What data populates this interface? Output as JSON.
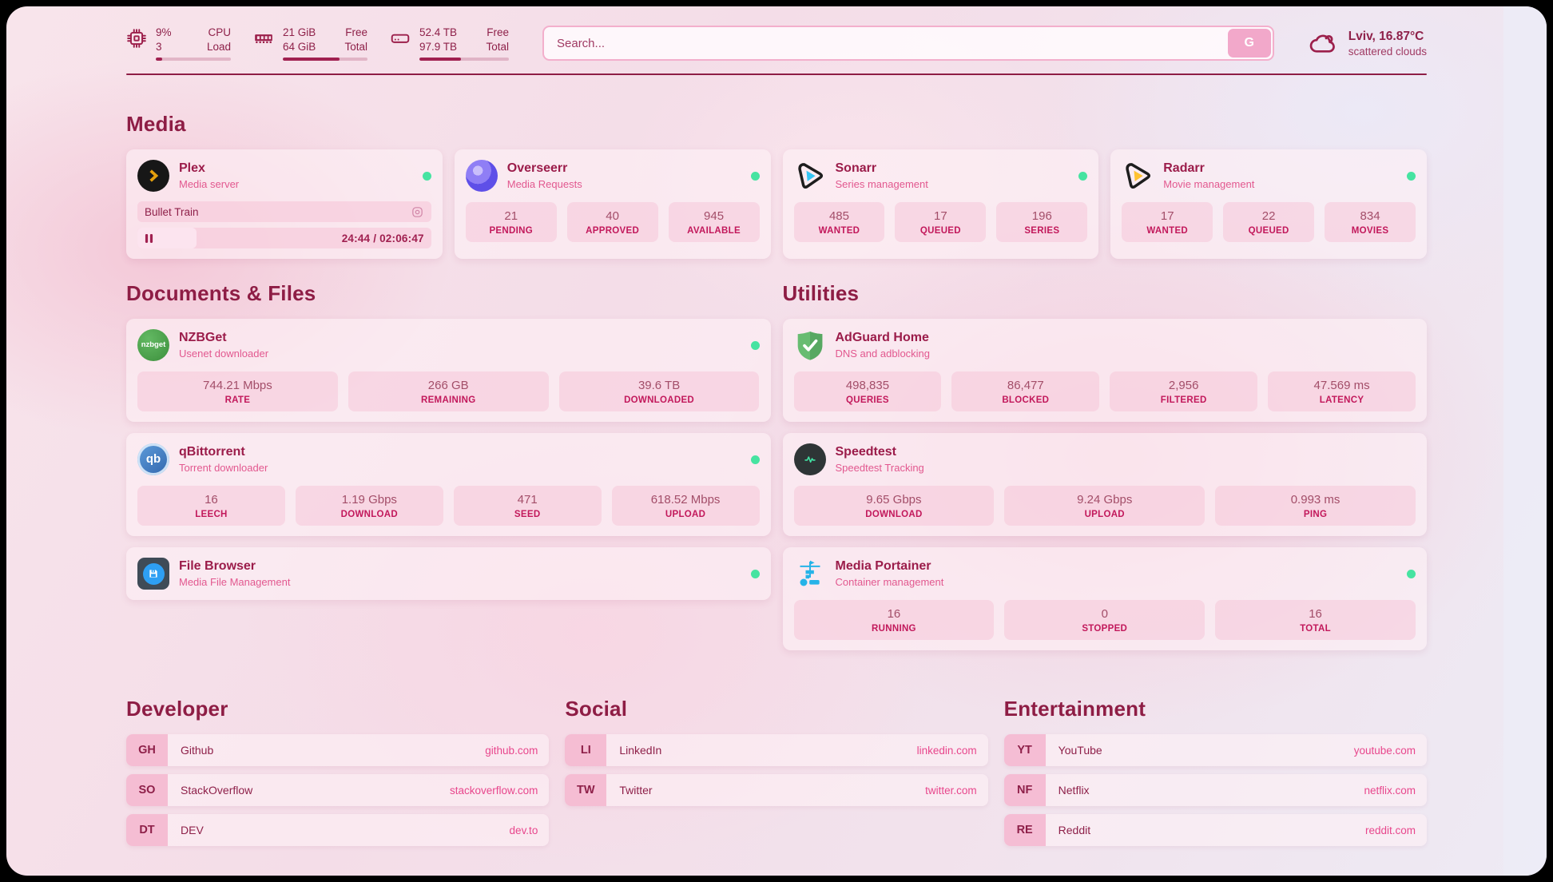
{
  "theme": {
    "accent": "#a02050",
    "heading": "#8e1d45",
    "subtitle": "#e2588f",
    "stat_label": "#c2185b",
    "status_online": "#46e3a1",
    "plex_brand": "#e5a00d",
    "sonarr_brand": "#35c5f4",
    "radarr_brand": "#ffc230"
  },
  "header": {
    "resources": {
      "cpu": {
        "value_top": "9%",
        "value_bottom": "3",
        "label_top": "CPU",
        "label_bottom": "Load",
        "used_percent": 9
      },
      "memory": {
        "value_top": "21 GiB",
        "value_bottom": "64 GiB",
        "label_top": "Free",
        "label_bottom": "Total",
        "used_percent": 67
      },
      "disk": {
        "value_top": "52.4 TB",
        "value_bottom": "97.9 TB",
        "label_top": "Free",
        "label_bottom": "Total",
        "used_percent": 46
      }
    },
    "search": {
      "placeholder": "Search...",
      "button": "G"
    },
    "weather": {
      "location_temp": "Lviv, 16.87°C",
      "condition": "scattered clouds"
    }
  },
  "media": {
    "heading": "Media",
    "plex": {
      "name": "Plex",
      "desc": "Media server",
      "now_playing": {
        "title": "Bullet Train",
        "time": "24:44 / 02:06:47",
        "progress_percent": 20
      }
    },
    "overseerr": {
      "name": "Overseerr",
      "desc": "Media Requests",
      "stats": [
        {
          "value": "21",
          "label": "PENDING"
        },
        {
          "value": "40",
          "label": "APPROVED"
        },
        {
          "value": "945",
          "label": "AVAILABLE"
        }
      ]
    },
    "sonarr": {
      "name": "Sonarr",
      "desc": "Series management",
      "stats": [
        {
          "value": "485",
          "label": "WANTED"
        },
        {
          "value": "17",
          "label": "QUEUED"
        },
        {
          "value": "196",
          "label": "SERIES"
        }
      ]
    },
    "radarr": {
      "name": "Radarr",
      "desc": "Movie management",
      "stats": [
        {
          "value": "17",
          "label": "WANTED"
        },
        {
          "value": "22",
          "label": "QUEUED"
        },
        {
          "value": "834",
          "label": "MOVIES"
        }
      ]
    }
  },
  "documents": {
    "heading": "Documents & Files",
    "nzbget": {
      "name": "NZBGet",
      "desc": "Usenet downloader",
      "icon_text": "nzbget",
      "stats": [
        {
          "value": "744.21 Mbps",
          "label": "RATE"
        },
        {
          "value": "266 GB",
          "label": "REMAINING"
        },
        {
          "value": "39.6 TB",
          "label": "DOWNLOADED"
        }
      ]
    },
    "qbittorrent": {
      "name": "qBittorrent",
      "desc": "Torrent downloader",
      "icon_text": "qb",
      "stats": [
        {
          "value": "16",
          "label": "LEECH"
        },
        {
          "value": "1.19 Gbps",
          "label": "DOWNLOAD"
        },
        {
          "value": "471",
          "label": "SEED"
        },
        {
          "value": "618.52 Mbps",
          "label": "UPLOAD"
        }
      ]
    },
    "filebrowser": {
      "name": "File Browser",
      "desc": "Media File Management"
    }
  },
  "utilities": {
    "heading": "Utilities",
    "adguard": {
      "name": "AdGuard Home",
      "desc": "DNS and adblocking",
      "stats": [
        {
          "value": "498,835",
          "label": "QUERIES"
        },
        {
          "value": "86,477",
          "label": "BLOCKED"
        },
        {
          "value": "2,956",
          "label": "FILTERED"
        },
        {
          "value": "47.569 ms",
          "label": "LATENCY"
        }
      ]
    },
    "speedtest": {
      "name": "Speedtest",
      "desc": "Speedtest Tracking",
      "stats": [
        {
          "value": "9.65 Gbps",
          "label": "DOWNLOAD"
        },
        {
          "value": "9.24 Gbps",
          "label": "UPLOAD"
        },
        {
          "value": "0.993 ms",
          "label": "PING"
        }
      ]
    },
    "portainer": {
      "name": "Media Portainer",
      "desc": "Container management",
      "stats": [
        {
          "value": "16",
          "label": "RUNNING"
        },
        {
          "value": "0",
          "label": "STOPPED"
        },
        {
          "value": "16",
          "label": "TOTAL"
        }
      ]
    }
  },
  "bookmarks": {
    "developer": {
      "heading": "Developer",
      "items": [
        {
          "abbr": "GH",
          "name": "Github",
          "url": "github.com"
        },
        {
          "abbr": "SO",
          "name": "StackOverflow",
          "url": "stackoverflow.com"
        },
        {
          "abbr": "DT",
          "name": "DEV",
          "url": "dev.to"
        }
      ]
    },
    "social": {
      "heading": "Social",
      "items": [
        {
          "abbr": "LI",
          "name": "LinkedIn",
          "url": "linkedin.com"
        },
        {
          "abbr": "TW",
          "name": "Twitter",
          "url": "twitter.com"
        }
      ]
    },
    "entertainment": {
      "heading": "Entertainment",
      "items": [
        {
          "abbr": "YT",
          "name": "YouTube",
          "url": "youtube.com"
        },
        {
          "abbr": "NF",
          "name": "Netflix",
          "url": "netflix.com"
        },
        {
          "abbr": "RE",
          "name": "Reddit",
          "url": "reddit.com"
        }
      ]
    }
  }
}
